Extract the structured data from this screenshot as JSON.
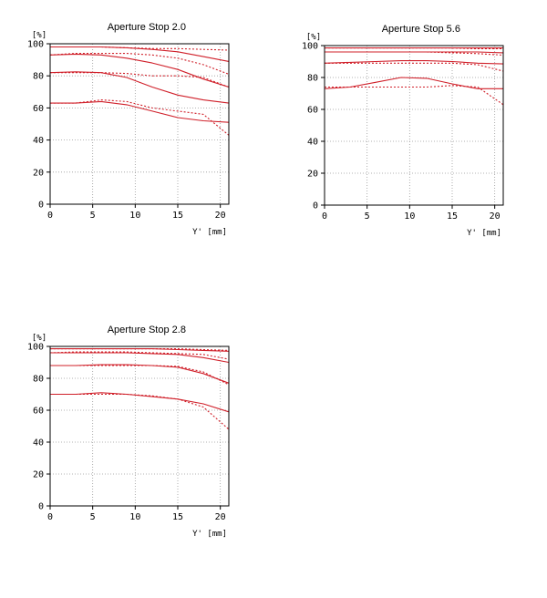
{
  "chart_data": [
    {
      "type": "line",
      "title": "Aperture Stop 2.0",
      "xlabel": "Y' [mm]",
      "ylabel": "[%]",
      "xlim": [
        0,
        21
      ],
      "ylim": [
        0,
        100
      ],
      "xticks": [
        0,
        5,
        10,
        15,
        20
      ],
      "yticks": [
        0,
        20,
        40,
        60,
        80,
        100
      ],
      "grid": true,
      "line_color": "#d0202a",
      "series": [
        {
          "style": "solid",
          "x": [
            0,
            3,
            6,
            9,
            12,
            15,
            18,
            21
          ],
          "y": [
            98,
            98,
            98,
            97.5,
            96.5,
            95,
            92,
            89
          ]
        },
        {
          "style": "dotted",
          "x": [
            0,
            3,
            6,
            9,
            12,
            15,
            18,
            21
          ],
          "y": [
            98,
            98,
            98,
            97.5,
            97,
            97,
            96.5,
            96
          ]
        },
        {
          "style": "solid",
          "x": [
            0,
            3,
            6,
            9,
            12,
            15,
            18,
            21
          ],
          "y": [
            93,
            93.5,
            93,
            91,
            88,
            84,
            78,
            73
          ]
        },
        {
          "style": "dotted",
          "x": [
            0,
            3,
            6,
            9,
            12,
            15,
            18,
            21
          ],
          "y": [
            93,
            94,
            94,
            94,
            93,
            91,
            87,
            81
          ]
        },
        {
          "style": "solid",
          "x": [
            0,
            3,
            6,
            9,
            12,
            15,
            18,
            21
          ],
          "y": [
            82,
            82.5,
            82,
            79,
            73,
            68,
            65,
            63
          ]
        },
        {
          "style": "dotted",
          "x": [
            0,
            3,
            6,
            9,
            12,
            15,
            18,
            21
          ],
          "y": [
            82,
            82,
            82,
            81.5,
            80,
            80,
            79,
            73
          ]
        },
        {
          "style": "solid",
          "x": [
            0,
            3,
            6,
            9,
            12,
            15,
            18,
            21
          ],
          "y": [
            63,
            63,
            64,
            62,
            58,
            54,
            52,
            51
          ]
        },
        {
          "style": "dotted",
          "x": [
            0,
            3,
            6,
            9,
            12,
            15,
            18,
            21
          ],
          "y": [
            63,
            63,
            65,
            64,
            60,
            58,
            56,
            43
          ]
        }
      ]
    },
    {
      "type": "line",
      "title": "Aperture Stop 5.6",
      "xlabel": "Y' [mm]",
      "ylabel": "[%]",
      "xlim": [
        0,
        21
      ],
      "ylim": [
        0,
        100
      ],
      "xticks": [
        0,
        5,
        10,
        15,
        20
      ],
      "yticks": [
        0,
        20,
        40,
        60,
        80,
        100
      ],
      "grid": true,
      "line_color": "#d0202a",
      "series": [
        {
          "style": "solid",
          "x": [
            0,
            3,
            6,
            9,
            12,
            15,
            18,
            21
          ],
          "y": [
            98.5,
            98.5,
            98.5,
            98.5,
            98.5,
            98.5,
            98.5,
            98.5
          ]
        },
        {
          "style": "dotted",
          "x": [
            0,
            3,
            6,
            9,
            12,
            15,
            18,
            21
          ],
          "y": [
            98.5,
            98.5,
            98.5,
            98.5,
            98.5,
            98.5,
            98,
            98
          ]
        },
        {
          "style": "solid",
          "x": [
            0,
            3,
            6,
            9,
            12,
            15,
            18,
            21
          ],
          "y": [
            96,
            96,
            96,
            96,
            96,
            96,
            96,
            95.5
          ]
        },
        {
          "style": "dotted",
          "x": [
            0,
            3,
            6,
            9,
            12,
            15,
            18,
            21
          ],
          "y": [
            96,
            96,
            96,
            96,
            96,
            95.5,
            95,
            94
          ]
        },
        {
          "style": "solid",
          "x": [
            0,
            3,
            6,
            9,
            12,
            15,
            18,
            21
          ],
          "y": [
            89,
            89.5,
            90,
            90.5,
            90.5,
            90,
            89,
            88.5
          ]
        },
        {
          "style": "dotted",
          "x": [
            0,
            3,
            6,
            9,
            12,
            15,
            18,
            21
          ],
          "y": [
            89,
            89,
            89,
            89,
            89,
            89,
            88,
            84
          ]
        },
        {
          "style": "solid",
          "x": [
            0,
            3,
            6,
            9,
            12,
            15,
            18,
            21
          ],
          "y": [
            73,
            74,
            77,
            80,
            79.5,
            76,
            73,
            73
          ]
        },
        {
          "style": "dotted",
          "x": [
            0,
            3,
            6,
            9,
            12,
            15,
            18,
            21
          ],
          "y": [
            74,
            74,
            74,
            74,
            74,
            75,
            74,
            63
          ]
        }
      ]
    },
    {
      "type": "line",
      "title": "Aperture Stop 2.8",
      "xlabel": "Y' [mm]",
      "ylabel": "[%]",
      "xlim": [
        0,
        21
      ],
      "ylim": [
        0,
        100
      ],
      "xticks": [
        0,
        5,
        10,
        15,
        20
      ],
      "yticks": [
        0,
        20,
        40,
        60,
        80,
        100
      ],
      "grid": true,
      "line_color": "#d0202a",
      "series": [
        {
          "style": "solid",
          "x": [
            0,
            3,
            6,
            9,
            12,
            15,
            18,
            21
          ],
          "y": [
            98.5,
            98.5,
            98.5,
            98.5,
            98.5,
            98,
            97.5,
            97
          ]
        },
        {
          "style": "dotted",
          "x": [
            0,
            3,
            6,
            9,
            12,
            15,
            18,
            21
          ],
          "y": [
            98.5,
            98.5,
            98.5,
            98.5,
            98.5,
            98.5,
            98,
            97.5
          ]
        },
        {
          "style": "solid",
          "x": [
            0,
            3,
            6,
            9,
            12,
            15,
            18,
            21
          ],
          "y": [
            96,
            96,
            96,
            96,
            95.5,
            95,
            93,
            90
          ]
        },
        {
          "style": "dotted",
          "x": [
            0,
            3,
            6,
            9,
            12,
            15,
            18,
            21
          ],
          "y": [
            96,
            96.5,
            96.5,
            96.5,
            96,
            95.5,
            95,
            92
          ]
        },
        {
          "style": "solid",
          "x": [
            0,
            3,
            6,
            9,
            12,
            15,
            18,
            21
          ],
          "y": [
            88,
            88,
            88.5,
            88.5,
            88,
            87,
            83,
            77
          ]
        },
        {
          "style": "dotted",
          "x": [
            0,
            3,
            6,
            9,
            12,
            15,
            18,
            21
          ],
          "y": [
            88,
            88,
            88,
            88,
            88,
            87.5,
            84,
            76
          ]
        },
        {
          "style": "solid",
          "x": [
            0,
            3,
            6,
            9,
            12,
            15,
            18,
            21
          ],
          "y": [
            70,
            70,
            71,
            70,
            68.5,
            67,
            64,
            59
          ]
        },
        {
          "style": "dotted",
          "x": [
            0,
            3,
            6,
            9,
            12,
            15,
            18,
            21
          ],
          "y": [
            70,
            70,
            70,
            70,
            69,
            67,
            62,
            48
          ]
        }
      ]
    }
  ]
}
